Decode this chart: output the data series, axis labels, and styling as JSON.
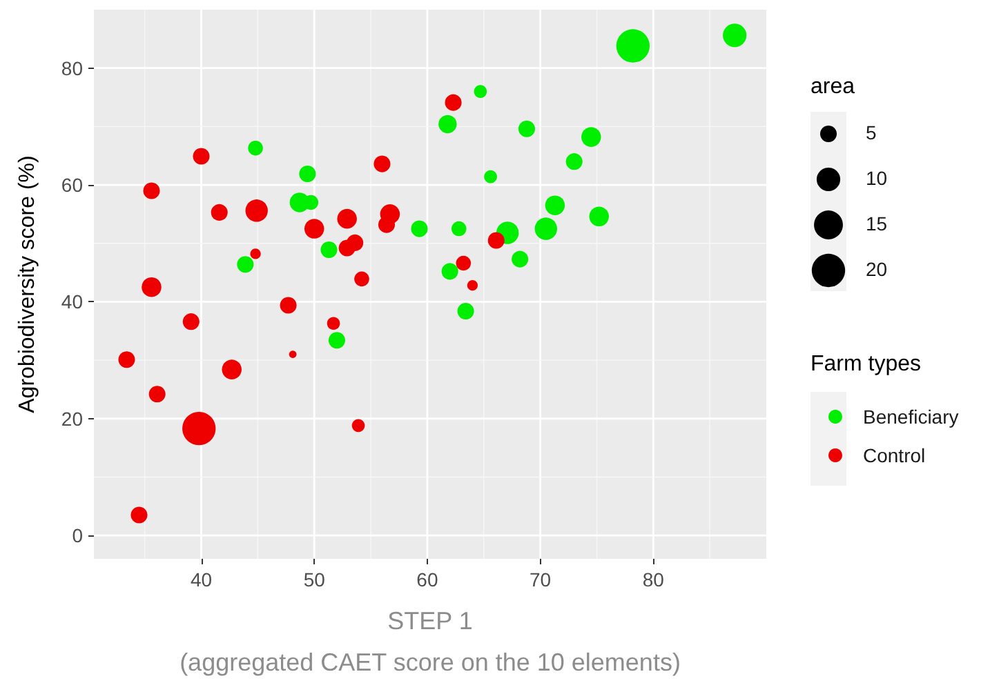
{
  "chart_data": {
    "type": "bubble",
    "xlabel": "STEP 1\n(aggregated CAET score on the 10 elements)",
    "ylabel": "Agrobiodiversity score (%)",
    "legend_title": "Farm types",
    "annotations": [
      "area"
    ],
    "size_legend": [
      5,
      10,
      15,
      20
    ],
    "xlim": [
      30.5,
      90
    ],
    "ylim": [
      -4,
      90
    ],
    "xticks": [
      40,
      50,
      60,
      70,
      80
    ],
    "yticks": [
      0,
      20,
      40,
      60,
      80
    ],
    "grid": true,
    "legend": "right",
    "marker": "circle",
    "series": [
      {
        "name": "Beneficiary",
        "color": "#00ee00",
        "x": [
          87.2,
          78.2,
          61.8,
          64.7,
          68.8,
          74.5,
          73.0,
          65.6,
          71.3,
          75.2,
          70.5,
          67.1,
          62.8,
          59.3,
          68.2,
          62.0,
          63.4,
          44.8,
          49.4,
          48.7,
          49.7,
          51.3,
          43.9,
          52.0
        ],
        "values": [
          85.6,
          83.8,
          70.4,
          76,
          69.6,
          68.2,
          64,
          61.4,
          56.5,
          54.6,
          52.5,
          51.8,
          52.5,
          52.5,
          47.3,
          45.2,
          38.4,
          66.3,
          61.9,
          57,
          57,
          48.9,
          46.4,
          33.4
        ],
        "sizes": [
          10,
          20,
          6,
          3,
          5,
          7,
          5,
          3,
          7,
          7,
          9,
          9,
          4,
          5,
          5,
          5,
          5,
          4,
          5,
          7,
          4,
          5,
          5,
          5
        ]
      },
      {
        "name": "Control",
        "color": "#ee0000",
        "x": [
          40,
          35.6,
          41.6,
          44.9,
          50.0,
          52.9,
          56.0,
          56.7,
          56.4,
          52.9,
          53.6,
          44.8,
          54.2,
          62.3,
          66.1,
          63.2,
          64.0,
          35.6,
          39.1,
          47.7,
          51.7,
          48.1,
          33.4,
          42.7,
          36.1,
          39.8,
          53.9,
          34.5
        ],
        "values": [
          64.9,
          59.0,
          55.3,
          55.6,
          52.5,
          54.2,
          63.6,
          55.0,
          53.2,
          49.2,
          50.1,
          48.2,
          43.9,
          74.1,
          50.5,
          46.6,
          42.8,
          42.5,
          36.6,
          39.4,
          36.3,
          31,
          30.1,
          28.4,
          24.2,
          18.3,
          18.8,
          3.5
        ],
        "sizes": [
          5,
          5,
          5,
          9,
          7,
          7,
          5,
          7,
          5,
          5,
          5,
          2,
          4,
          5,
          5,
          4,
          2,
          7,
          5,
          5,
          3,
          1,
          5,
          7,
          5,
          20,
          3,
          5
        ]
      }
    ]
  }
}
